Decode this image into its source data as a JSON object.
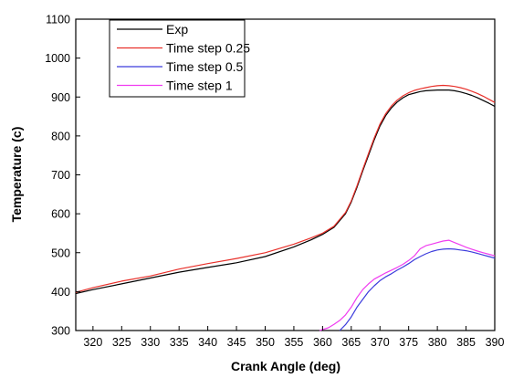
{
  "chart_data": {
    "type": "line",
    "xlabel": "Crank Angle (deg)",
    "ylabel": "Temperature (c)",
    "xlim": [
      317,
      390
    ],
    "ylim": [
      300,
      1100
    ],
    "xticks": [
      320,
      325,
      330,
      335,
      340,
      345,
      350,
      355,
      360,
      365,
      370,
      375,
      380,
      385,
      390
    ],
    "yticks": [
      300,
      400,
      500,
      600,
      700,
      800,
      900,
      1000,
      1100
    ],
    "grid": false,
    "legend_position": "top-left",
    "series": [
      {
        "name": "Exp",
        "color": "#000000",
        "x": [
          317,
          320,
          325,
          330,
          335,
          340,
          345,
          350,
          355,
          358,
          360,
          362,
          364,
          365,
          366,
          367,
          368,
          369,
          370,
          371,
          372,
          373,
          374,
          375,
          376,
          377,
          378,
          379,
          380,
          381,
          382,
          383,
          384,
          385,
          386,
          387,
          388,
          389,
          390
        ],
        "y": [
          395,
          405,
          420,
          435,
          450,
          462,
          474,
          490,
          515,
          533,
          547,
          565,
          600,
          630,
          668,
          710,
          750,
          790,
          825,
          852,
          872,
          887,
          898,
          906,
          910,
          914,
          916,
          917,
          918,
          918,
          918,
          916,
          913,
          909,
          904,
          898,
          891,
          884,
          876
        ]
      },
      {
        "name": "Time step 0.25",
        "color": "#e8302a",
        "x": [
          317,
          320,
          325,
          330,
          335,
          340,
          345,
          350,
          355,
          358,
          360,
          362,
          364,
          365,
          366,
          367,
          368,
          369,
          370,
          371,
          372,
          373,
          374,
          375,
          376,
          377,
          378,
          379,
          380,
          381,
          382,
          383,
          384,
          385,
          386,
          387,
          388,
          389,
          390
        ],
        "y": [
          398,
          410,
          427,
          440,
          458,
          472,
          485,
          500,
          522,
          538,
          550,
          568,
          603,
          633,
          672,
          714,
          755,
          795,
          830,
          857,
          877,
          892,
          903,
          911,
          917,
          921,
          924,
          927,
          929,
          930,
          929,
          927,
          924,
          920,
          915,
          909,
          902,
          894,
          886
        ]
      },
      {
        "name": "Time step 0.5",
        "color": "#3c3cdc",
        "x": [
          363,
          364,
          365,
          366,
          367,
          368,
          369,
          370,
          371,
          372,
          373,
          374,
          375,
          376,
          377,
          378,
          379,
          380,
          381,
          382,
          383,
          384,
          385,
          386,
          387,
          388,
          389,
          390
        ],
        "y": [
          300,
          315,
          335,
          360,
          380,
          400,
          415,
          428,
          438,
          446,
          455,
          463,
          472,
          482,
          490,
          497,
          503,
          507,
          509,
          510,
          509,
          507,
          505,
          502,
          498,
          494,
          490,
          486
        ]
      },
      {
        "name": "Time step 1",
        "color": "#f03cf0",
        "x": [
          359.5,
          361,
          362,
          363,
          364,
          365,
          366,
          367,
          368,
          369,
          370,
          371,
          372,
          373,
          374,
          375,
          376,
          377,
          378,
          379,
          380,
          381,
          382,
          383,
          384,
          385,
          386,
          387,
          388,
          389,
          390
        ],
        "y": [
          300,
          307,
          316,
          326,
          340,
          360,
          385,
          405,
          420,
          432,
          440,
          448,
          455,
          462,
          470,
          480,
          492,
          510,
          518,
          522,
          526,
          530,
          532,
          526,
          520,
          514,
          509,
          504,
          500,
          496,
          492
        ]
      }
    ]
  }
}
